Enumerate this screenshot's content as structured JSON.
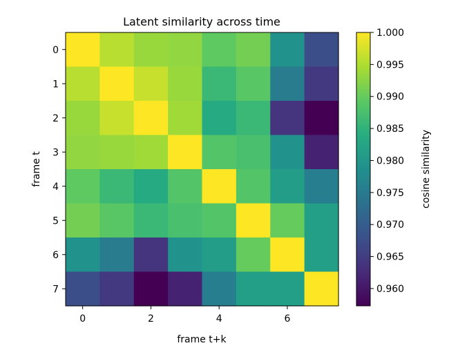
{
  "chart_data": {
    "type": "heatmap",
    "title": "Latent similarity across time",
    "xlabel": "frame t+k",
    "ylabel": "frame t",
    "x_ticks": [
      0,
      2,
      4,
      6
    ],
    "y_ticks": [
      0,
      1,
      2,
      3,
      4,
      5,
      6,
      7
    ],
    "colorbar": {
      "label": "cosine similarity",
      "min": 0.9573,
      "max": 1.0,
      "ticks": [
        "0.960",
        "0.965",
        "0.970",
        "0.975",
        "0.980",
        "0.985",
        "0.990",
        "0.995",
        "1.000"
      ],
      "colormap": "viridis"
    },
    "matrix": [
      [
        1.0,
        0.9955,
        0.9935,
        0.993,
        0.9895,
        0.991,
        0.979,
        0.9675
      ],
      [
        0.9955,
        1.0,
        0.9965,
        0.9935,
        0.986,
        0.989,
        0.975,
        0.9645
      ],
      [
        0.9935,
        0.9965,
        1.0,
        0.994,
        0.9835,
        0.986,
        0.964,
        0.9573
      ],
      [
        0.993,
        0.9935,
        0.994,
        1.0,
        0.9885,
        0.9875,
        0.979,
        0.9615
      ],
      [
        0.9895,
        0.986,
        0.9835,
        0.9885,
        1.0,
        0.9885,
        0.981,
        0.9755
      ],
      [
        0.991,
        0.989,
        0.986,
        0.9875,
        0.9885,
        1.0,
        0.99,
        0.9815
      ],
      [
        0.979,
        0.975,
        0.964,
        0.979,
        0.981,
        0.99,
        1.0,
        0.9815
      ],
      [
        0.9675,
        0.9645,
        0.9573,
        0.9615,
        0.9755,
        0.9815,
        0.9815,
        1.0
      ]
    ]
  }
}
